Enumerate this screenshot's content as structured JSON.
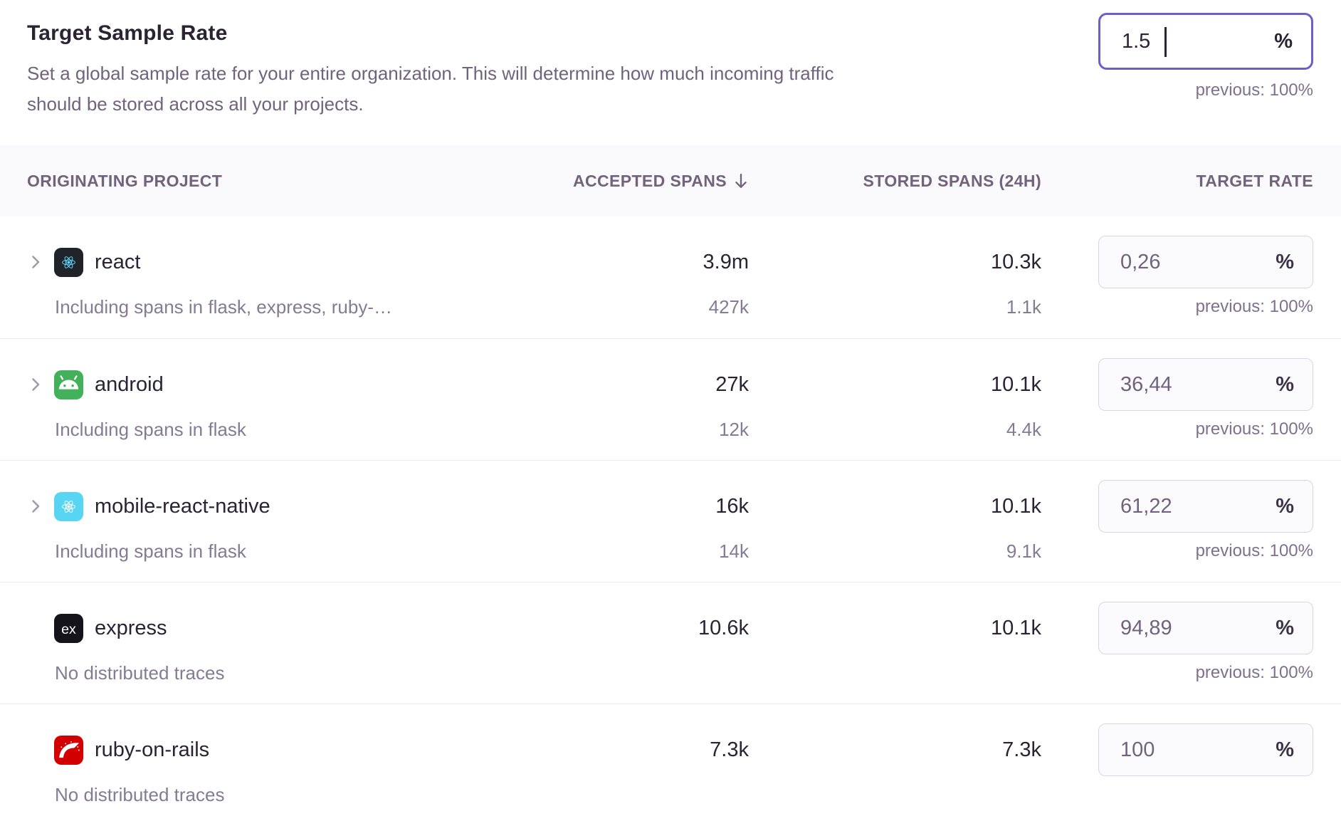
{
  "header": {
    "title": "Target Sample Rate",
    "description_lines": [
      "Set a global sample rate for your entire organization. This will determine how much incoming traffic",
      "should be stored across all your projects."
    ],
    "input": {
      "value": "1.5",
      "unit": "%"
    },
    "previous": "previous: 100%"
  },
  "table": {
    "columns": [
      {
        "label": "ORIGINATING PROJECT",
        "sorted": false
      },
      {
        "label": "ACCEPTED SPANS",
        "sorted": true
      },
      {
        "label": "STORED SPANS (24H)",
        "sorted": false
      },
      {
        "label": "TARGET RATE",
        "sorted": false
      }
    ],
    "rows": [
      {
        "project": "react",
        "icon": "react-icon",
        "expandable": true,
        "subtext": "Including spans in flask, express, ruby-…",
        "accepted": "3.9m",
        "accepted_sub": "427k",
        "stored": "10.3k",
        "stored_sub": "1.1k",
        "rate": "0,26",
        "unit": "%",
        "previous": "previous: 100%"
      },
      {
        "project": "android",
        "icon": "android-icon",
        "expandable": true,
        "subtext": "Including spans in flask",
        "accepted": "27k",
        "accepted_sub": "12k",
        "stored": "10.1k",
        "stored_sub": "4.4k",
        "rate": "36,44",
        "unit": "%",
        "previous": "previous: 100%"
      },
      {
        "project": "mobile-react-native",
        "icon": "react-native-icon",
        "expandable": true,
        "subtext": "Including spans in flask",
        "accepted": "16k",
        "accepted_sub": "14k",
        "stored": "10.1k",
        "stored_sub": "9.1k",
        "rate": "61,22",
        "unit": "%",
        "previous": "previous: 100%"
      },
      {
        "project": "express",
        "icon": "express-icon",
        "expandable": false,
        "subtext": "No distributed traces",
        "accepted": "10.6k",
        "accepted_sub": "",
        "stored": "10.1k",
        "stored_sub": "",
        "rate": "94,89",
        "unit": "%",
        "previous": "previous: 100%"
      },
      {
        "project": "ruby-on-rails",
        "icon": "rails-icon",
        "expandable": false,
        "subtext": "No distributed traces",
        "accepted": "7.3k",
        "accepted_sub": "",
        "stored": "7.3k",
        "stored_sub": "",
        "rate": "100",
        "unit": "%",
        "previous": ""
      }
    ]
  },
  "colors": {
    "accent_purple": "#6c5fc7",
    "text_dark": "#2b2233",
    "text_muted": "#80708f",
    "header_bg": "#faf9fb",
    "react_bg": "#20232a",
    "react_logo": "#61dafb",
    "android_bg": "#43b15c",
    "react_native_bg": "#58d5f3",
    "express_bg": "#15141a",
    "rails_bg": "#d30001"
  }
}
